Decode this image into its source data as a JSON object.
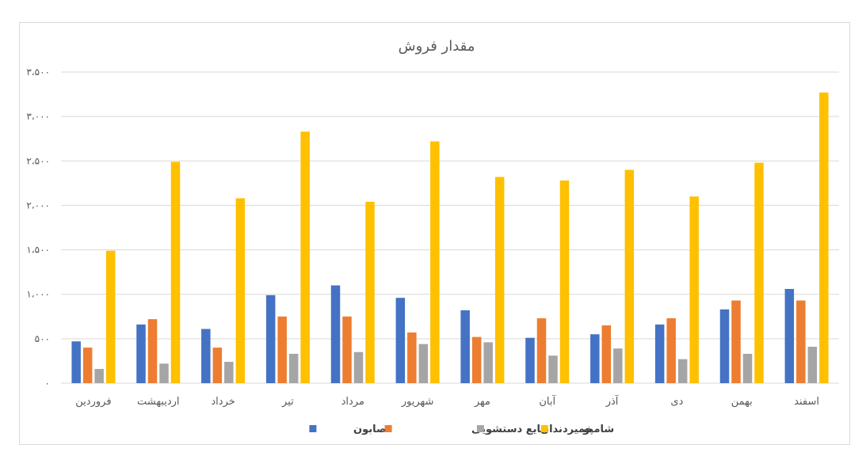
{
  "chart_data": {
    "type": "bar",
    "title": "مقدار فروش",
    "xlabel": "",
    "ylabel": "",
    "ylim": [
      0,
      3500
    ],
    "yticks": [
      {
        "value": 0,
        "label": "۰"
      },
      {
        "value": 500,
        "label": "۵۰۰"
      },
      {
        "value": 1000,
        "label": "۱،۰۰۰"
      },
      {
        "value": 1500,
        "label": "۱،۵۰۰"
      },
      {
        "value": 2000,
        "label": "۲،۰۰۰"
      },
      {
        "value": 2500,
        "label": "۲،۵۰۰"
      },
      {
        "value": 3000,
        "label": "۳،۰۰۰"
      },
      {
        "value": 3500,
        "label": "۳،۵۰۰"
      }
    ],
    "grid": true,
    "legend": "bottom",
    "categories": [
      "فروردین",
      "اردیبهشت",
      "خرداد",
      "تیر",
      "مرداد",
      "شهریور",
      "مهر",
      "آبان",
      "آذر",
      "دی",
      "بهمن",
      "اسفند"
    ],
    "series": [
      {
        "name": "صابون",
        "color": "#4472C4",
        "values": [
          470,
          660,
          610,
          990,
          1100,
          960,
          820,
          510,
          550,
          660,
          830,
          1060
        ]
      },
      {
        "name": "مایع دستشویی",
        "color": "#ED7D31",
        "values": [
          400,
          720,
          400,
          750,
          750,
          570,
          520,
          730,
          650,
          730,
          930,
          930
        ]
      },
      {
        "name": "خمیردندان",
        "color": "#A5A5A5",
        "values": [
          160,
          220,
          240,
          330,
          350,
          440,
          460,
          310,
          390,
          270,
          330,
          410
        ]
      },
      {
        "name": "شامپو",
        "color": "#FFC000",
        "values": [
          1490,
          2490,
          2080,
          2830,
          2040,
          2720,
          2320,
          2280,
          2400,
          2100,
          2480,
          3270
        ]
      }
    ]
  }
}
